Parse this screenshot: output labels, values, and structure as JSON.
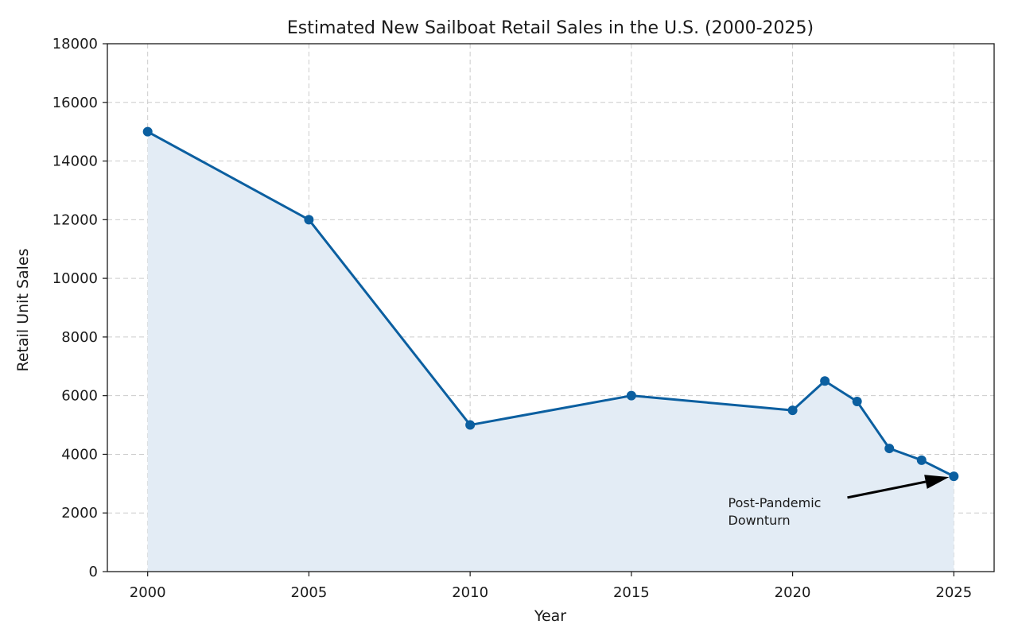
{
  "chart_data": {
    "type": "line",
    "title": "Estimated New Sailboat Retail Sales in the U.S. (2000-2025)",
    "xlabel": "Year",
    "ylabel": "Retail Unit Sales",
    "x": [
      2000,
      2005,
      2010,
      2015,
      2020,
      2021,
      2022,
      2023,
      2024,
      2025
    ],
    "series": [
      {
        "values": [
          15000,
          12000,
          5000,
          6000,
          5500,
          6500,
          5800,
          4200,
          3800,
          3250
        ]
      }
    ],
    "xlim": [
      1998.75,
      2026.25
    ],
    "ylim": [
      0,
      18000
    ],
    "xticks": [
      "2000",
      "2005",
      "2010",
      "2015",
      "2020",
      "2025"
    ],
    "yticks": [
      "0",
      "2000",
      "4000",
      "6000",
      "8000",
      "10000",
      "12000",
      "14000",
      "16000",
      "18000"
    ],
    "grid": true,
    "fill_under": true,
    "colors": {
      "line": "#0b5fa0",
      "fill": "#e3ecf5"
    },
    "annotation": {
      "lines": [
        "Post-Pandemic",
        "Downturn"
      ],
      "target_x": 2025,
      "target_y": 3250,
      "text_x": 2018,
      "text_y": 2200
    }
  }
}
